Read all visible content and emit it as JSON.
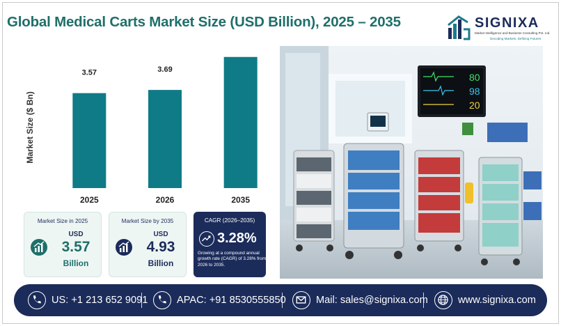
{
  "title": "Global Medical Carts Market Size (USD Billion), 2025 – 2035",
  "brand": {
    "name": "SIGNIXA",
    "subtitle": "Market Intelligence and Business Consulting Pvt. Ltd.",
    "tagline": "Decoding Markets, Defining Futures",
    "colors": {
      "navy": "#1b2b5a",
      "teal": "#1e6f6a",
      "accent": "#1e7a8c"
    }
  },
  "chart_data": {
    "type": "bar",
    "categories": [
      "2025",
      "2026",
      "2035"
    ],
    "values": [
      3.57,
      3.69,
      4.93
    ],
    "data_labels": [
      "3.57",
      "3.69",
      "4.93"
    ],
    "title": "",
    "xlabel": "",
    "ylabel": "Market Size ($ Bn)",
    "ylim": [
      0,
      5.5
    ],
    "grid": false,
    "legend": "none",
    "bar_color": "#0f7b86"
  },
  "cards": [
    {
      "title": "Market Size in 2025",
      "prefix": "USD",
      "value": "3.57",
      "unit": "Billion",
      "icon": "growth-chart-icon"
    },
    {
      "title": "Market Size by 2035",
      "prefix": "USD",
      "value": "4.93",
      "unit": "Billion",
      "icon": "growth-chart-icon"
    },
    {
      "title": "CAGR (2026–2035)",
      "value": "3.28%",
      "description": "Growing at a compound annual growth rate (CAGR) of 3.28% from 2026 to 2035.",
      "icon": "trend-up-icon"
    }
  ],
  "photo": {
    "subject": "medical-carts-photo",
    "monitor": [
      "80",
      "98",
      "20"
    ],
    "monitor_colors": [
      "#3de36a",
      "#39c6f0",
      "#f2d43a"
    ]
  },
  "footer": {
    "us_phone": "US: +1 213 652 9091",
    "apac_phone": "APAC: +91 8530555850",
    "email": "Mail: sales@signixa.com",
    "website": "www.signixa.com"
  }
}
